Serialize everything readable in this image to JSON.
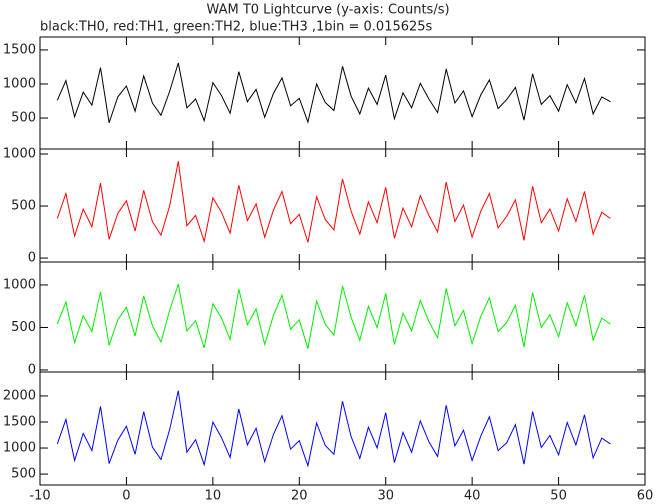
{
  "chart_data": [
    {
      "type": "line",
      "title": "WAM T0 Lightcurve (y-axis: Counts/s)",
      "subtitle": "black:TH0, red:TH1, green:TH2, blue:TH3 ,1bin = 0.015625s",
      "ylim": [
        45,
        1690
      ],
      "yticks": [
        500,
        1000,
        1500
      ],
      "series": [
        {
          "color": "#000000",
          "x": [
            -8,
            -7,
            -6,
            -5,
            -4,
            -3,
            -2,
            -1,
            0,
            1,
            2,
            3,
            4,
            5,
            6,
            7,
            8,
            9,
            10,
            11,
            12,
            13,
            14,
            15,
            16,
            17,
            18,
            19,
            20,
            21,
            22,
            23,
            24,
            25,
            26,
            27,
            28,
            29,
            30,
            31,
            32,
            33,
            34,
            35,
            36,
            37,
            38,
            39,
            40,
            41,
            42,
            43,
            44,
            45,
            46,
            47,
            48,
            49,
            50,
            51,
            52,
            53,
            54,
            55,
            56
          ],
          "values": [
            760,
            1050,
            520,
            880,
            690,
            1240,
            430,
            810,
            970,
            600,
            1120,
            720,
            540,
            890,
            1310,
            650,
            780,
            460,
            1020,
            830,
            570,
            1180,
            740,
            920,
            510,
            860,
            1090,
            680,
            790,
            440,
            1000,
            730,
            610,
            1260,
            820,
            560,
            940,
            700,
            1130,
            490,
            870,
            650,
            1010,
            780,
            580,
            1220,
            720,
            900,
            520,
            840,
            1060,
            640,
            770,
            950,
            470,
            1150,
            700,
            830,
            600,
            990,
            720,
            1080,
            560,
            810,
            740
          ]
        }
      ]
    },
    {
      "type": "line",
      "ylim": [
        -38,
        1048
      ],
      "yticks": [
        0,
        500,
        1000
      ],
      "series": [
        {
          "color": "#ff0000",
          "x": [
            -8,
            -7,
            -6,
            -5,
            -4,
            -3,
            -2,
            -1,
            0,
            1,
            2,
            3,
            4,
            5,
            6,
            7,
            8,
            9,
            10,
            11,
            12,
            13,
            14,
            15,
            16,
            17,
            18,
            19,
            20,
            21,
            22,
            23,
            24,
            25,
            26,
            27,
            28,
            29,
            30,
            31,
            32,
            33,
            34,
            35,
            36,
            37,
            38,
            39,
            40,
            41,
            42,
            43,
            44,
            45,
            46,
            47,
            48,
            49,
            50,
            51,
            52,
            53,
            54,
            55,
            56
          ],
          "values": [
            380,
            620,
            210,
            470,
            300,
            720,
            180,
            430,
            550,
            260,
            650,
            350,
            220,
            500,
            930,
            310,
            410,
            160,
            580,
            440,
            240,
            700,
            360,
            520,
            200,
            460,
            640,
            330,
            420,
            150,
            590,
            370,
            270,
            760,
            450,
            230,
            540,
            340,
            680,
            190,
            480,
            300,
            600,
            410,
            250,
            730,
            350,
            510,
            200,
            450,
            620,
            290,
            400,
            560,
            170,
            690,
            340,
            470,
            260,
            570,
            350,
            640,
            230,
            440,
            380
          ]
        }
      ]
    },
    {
      "type": "line",
      "ylim": [
        -24,
        1270
      ],
      "yticks": [
        0,
        500,
        1000
      ],
      "series": [
        {
          "color": "#00ee00",
          "x": [
            -8,
            -7,
            -6,
            -5,
            -4,
            -3,
            -2,
            -1,
            0,
            1,
            2,
            3,
            4,
            5,
            6,
            7,
            8,
            9,
            10,
            11,
            12,
            13,
            14,
            15,
            16,
            17,
            18,
            19,
            20,
            21,
            22,
            23,
            24,
            25,
            26,
            27,
            28,
            29,
            30,
            31,
            32,
            33,
            34,
            35,
            36,
            37,
            38,
            39,
            40,
            41,
            42,
            43,
            44,
            45,
            46,
            47,
            48,
            49,
            50,
            51,
            52,
            53,
            54,
            55,
            56
          ],
          "values": [
            540,
            800,
            320,
            640,
            450,
            920,
            290,
            590,
            740,
            400,
            870,
            520,
            330,
            700,
            1010,
            460,
            580,
            260,
            780,
            610,
            360,
            950,
            530,
            720,
            300,
            640,
            880,
            480,
            590,
            250,
            810,
            540,
            410,
            990,
            620,
            350,
            750,
            500,
            900,
            300,
            670,
            460,
            820,
            570,
            380,
            960,
            520,
            700,
            310,
            630,
            850,
            450,
            560,
            760,
            270,
            910,
            500,
            650,
            390,
            790,
            520,
            880,
            350,
            610,
            540
          ]
        }
      ]
    },
    {
      "type": "line",
      "ylim": [
        290,
        2460
      ],
      "yticks": [
        500,
        1000,
        1500,
        2000
      ],
      "xlim": [
        -10,
        60
      ],
      "xticks": [
        -10,
        0,
        10,
        20,
        30,
        40,
        50,
        60
      ],
      "series": [
        {
          "color": "#0000ff",
          "x": [
            -8,
            -7,
            -6,
            -5,
            -4,
            -3,
            -2,
            -1,
            0,
            1,
            2,
            3,
            4,
            5,
            6,
            7,
            8,
            9,
            10,
            11,
            12,
            13,
            14,
            15,
            16,
            17,
            18,
            19,
            20,
            21,
            22,
            23,
            24,
            25,
            26,
            27,
            28,
            29,
            30,
            31,
            32,
            33,
            34,
            35,
            36,
            37,
            38,
            39,
            40,
            41,
            42,
            43,
            44,
            45,
            46,
            47,
            48,
            49,
            50,
            51,
            52,
            53,
            54,
            55,
            56
          ],
          "values": [
            1080,
            1550,
            760,
            1280,
            950,
            1800,
            700,
            1150,
            1420,
            880,
            1700,
            1020,
            780,
            1350,
            2100,
            920,
            1160,
            680,
            1500,
            1200,
            820,
            1750,
            1060,
            1380,
            740,
            1260,
            1620,
            980,
            1140,
            660,
            1480,
            1050,
            880,
            1900,
            1220,
            800,
            1400,
            1000,
            1680,
            720,
            1300,
            920,
            1520,
            1120,
            840,
            1820,
            1040,
            1340,
            760,
            1230,
            1600,
            950,
            1100,
            1450,
            690,
            1700,
            1010,
            1240,
            870,
            1490,
            1060,
            1640,
            810,
            1190,
            1080
          ]
        }
      ]
    }
  ]
}
